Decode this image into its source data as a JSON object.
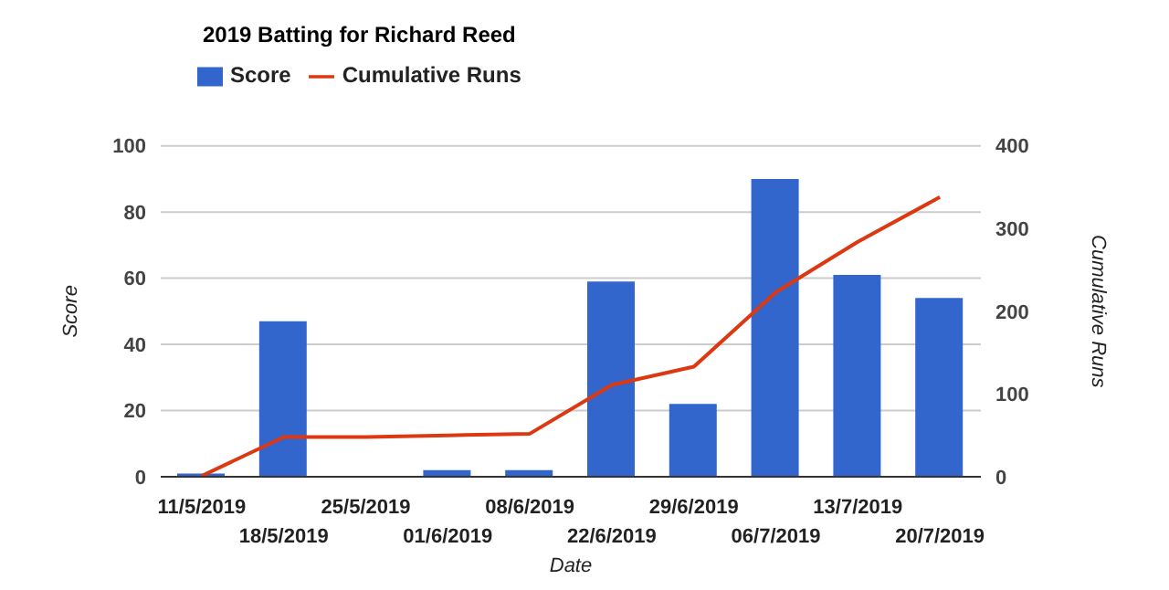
{
  "chart_data": {
    "type": "bar",
    "title": "2019 Batting for Richard Reed",
    "xlabel": "Date",
    "ylabel": "Score",
    "y2label": "Cumulative Runs",
    "categories": [
      "11/5/2019",
      "18/5/2019",
      "25/5/2019",
      "01/6/2019",
      "08/6/2019",
      "22/6/2019",
      "29/6/2019",
      "06/7/2019",
      "13/7/2019",
      "20/7/2019"
    ],
    "series": [
      {
        "name": "Score",
        "color": "#3366cc",
        "values": [
          1,
          47,
          0,
          2,
          2,
          59,
          22,
          90,
          61,
          54
        ]
      },
      {
        "name": "Cumulative Runs",
        "type": "line",
        "axis": "y2",
        "color": "#dc3912",
        "values": [
          1,
          48,
          48,
          50,
          52,
          111,
          133,
          223,
          284,
          338
        ]
      }
    ],
    "ylim": [
      0,
      100
    ],
    "yticks": [
      0,
      20,
      40,
      60,
      80,
      100
    ],
    "y2lim": [
      0,
      400
    ],
    "y2ticks": [
      0,
      100,
      200,
      300,
      400
    ],
    "grid": "y",
    "legend": "top left",
    "marker": "none",
    "line_style": "solid"
  }
}
